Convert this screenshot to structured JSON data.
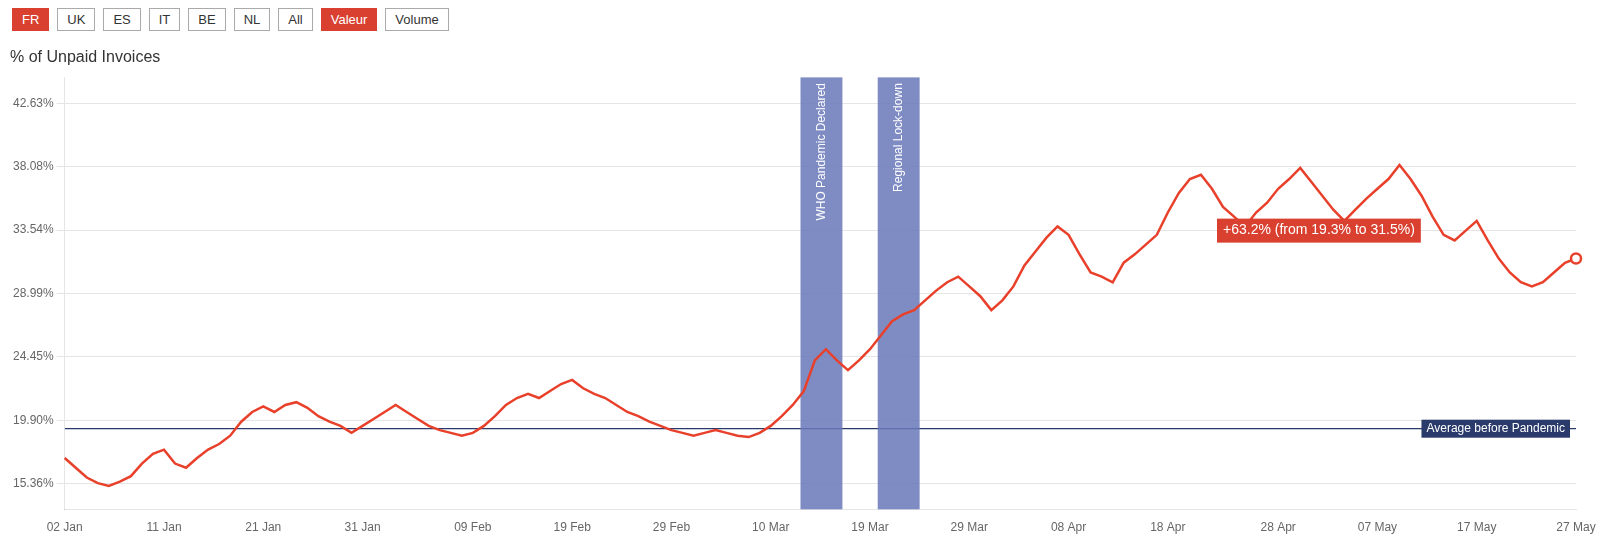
{
  "chart_data": {
    "type": "line",
    "title": "% of Unpaid Invoices",
    "categories": [
      "02 Jan",
      null,
      null,
      null,
      null,
      null,
      null,
      null,
      null,
      "11 Jan",
      null,
      null,
      null,
      null,
      null,
      null,
      null,
      null,
      "21 Jan",
      null,
      null,
      null,
      null,
      null,
      null,
      null,
      null,
      "31 Jan",
      null,
      null,
      null,
      null,
      null,
      null,
      null,
      null,
      null,
      "09 Feb",
      null,
      null,
      null,
      null,
      null,
      null,
      null,
      null,
      "19 Feb",
      null,
      null,
      null,
      null,
      null,
      null,
      null,
      null,
      "29 Feb",
      null,
      null,
      null,
      null,
      null,
      null,
      null,
      null,
      "10 Mar",
      null,
      null,
      null,
      null,
      null,
      null,
      null,
      null,
      "19 Mar",
      null,
      null,
      null,
      null,
      null,
      null,
      null,
      null,
      "29 Mar",
      null,
      null,
      null,
      null,
      null,
      null,
      null,
      null,
      "08 Apr",
      null,
      null,
      null,
      null,
      null,
      null,
      null,
      null,
      "18 Apr",
      null,
      null,
      null,
      null,
      null,
      null,
      null,
      null,
      null,
      "28 Apr",
      null,
      null,
      null,
      null,
      null,
      null,
      null,
      null,
      "07 May",
      null,
      null,
      null,
      null,
      null,
      null,
      null,
      null,
      "17 May",
      null,
      null,
      null,
      null,
      null,
      null,
      null,
      null,
      "27 May"
    ],
    "values": [
      17.2,
      16.5,
      15.8,
      15.4,
      15.2,
      15.5,
      15.9,
      16.8,
      17.5,
      17.8,
      16.8,
      16.5,
      17.2,
      17.8,
      18.2,
      18.8,
      19.8,
      20.5,
      20.9,
      20.5,
      21.0,
      21.2,
      20.8,
      20.2,
      19.8,
      19.5,
      19.0,
      19.5,
      20.0,
      20.5,
      21.0,
      20.5,
      20.0,
      19.5,
      19.2,
      19.0,
      18.8,
      19.0,
      19.5,
      20.2,
      21.0,
      21.5,
      21.8,
      21.5,
      22.0,
      22.5,
      22.8,
      22.2,
      21.8,
      21.5,
      21.0,
      20.5,
      20.2,
      19.8,
      19.5,
      19.2,
      19.0,
      18.8,
      19.0,
      19.2,
      19.0,
      18.8,
      18.7,
      19.0,
      19.5,
      20.2,
      21.0,
      22.0,
      24.2,
      25.0,
      24.2,
      23.5,
      24.2,
      25.0,
      26.0,
      27.0,
      27.5,
      27.8,
      28.5,
      29.2,
      29.8,
      30.2,
      29.5,
      28.8,
      27.8,
      28.5,
      29.5,
      31.0,
      32.0,
      33.0,
      33.8,
      33.2,
      31.8,
      30.5,
      30.2,
      29.8,
      31.2,
      31.8,
      32.5,
      33.2,
      34.8,
      36.2,
      37.2,
      37.5,
      36.5,
      35.2,
      34.5,
      33.8,
      34.8,
      35.5,
      36.5,
      37.2,
      38.0,
      37.0,
      36.0,
      35.0,
      34.2,
      35.0,
      35.8,
      36.5,
      37.2,
      38.2,
      37.2,
      36.0,
      34.5,
      33.2,
      32.8,
      33.5,
      34.2,
      32.8,
      31.5,
      30.5,
      29.8,
      29.5,
      29.8,
      30.5,
      31.2,
      31.5
    ],
    "color": "#e8402a",
    "ylim": [
      13.5,
      44.5
    ],
    "yticks": [
      {
        "value": 15.36,
        "label": "15.36%"
      },
      {
        "value": 19.9,
        "label": "19.90%"
      },
      {
        "value": 24.45,
        "label": "24.45%"
      },
      {
        "value": 28.99,
        "label": "28.99%"
      },
      {
        "value": 33.54,
        "label": "33.54%"
      },
      {
        "value": 38.08,
        "label": "38.08%"
      },
      {
        "value": 42.63,
        "label": "42.63%"
      }
    ],
    "grid": "y",
    "annotations": [
      {
        "type": "hline",
        "y": 19.3,
        "text": "Average before Pandemic",
        "color": "#2a3a6b"
      },
      {
        "type": "band",
        "x": 67,
        "text": "WHO Pandemic Declared",
        "color": "#6878b8"
      },
      {
        "type": "band",
        "x": 74,
        "text": "Regional Lock-down",
        "color": "#6878b8"
      },
      {
        "type": "label",
        "x": 105,
        "y": 33.5,
        "text": "+63.2% (from 19.3% to 31.5%)",
        "color": "#d94030",
        "text_color": "#ffffff"
      },
      {
        "type": "button",
        "text": "FR",
        "color": "#d94030"
      },
      {
        "type": "button",
        "text": "UK"
      },
      {
        "type": "button",
        "text": "ES"
      },
      {
        "type": "button",
        "text": "IT"
      },
      {
        "type": "button",
        "text": "BE"
      },
      {
        "type": "button",
        "text": "NL"
      },
      {
        "type": "button",
        "text": "All"
      },
      {
        "type": "button",
        "text": "Valeur",
        "color": "#d94030"
      },
      {
        "type": "button",
        "text": "Volume"
      }
    ]
  }
}
